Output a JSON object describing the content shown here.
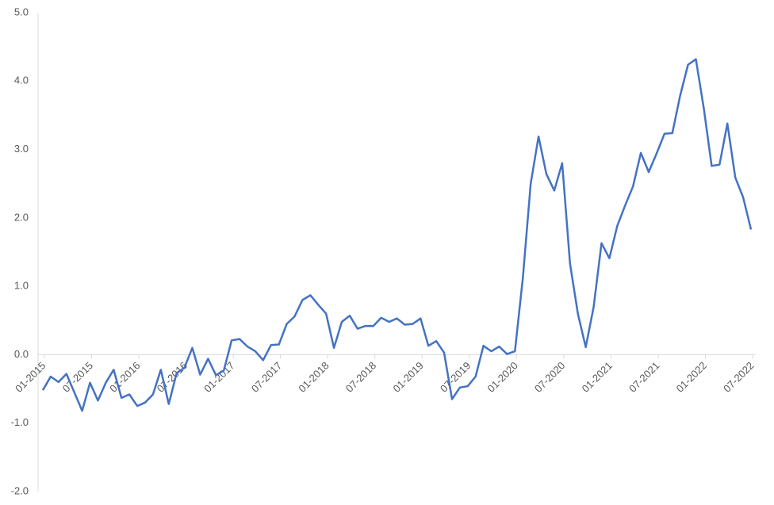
{
  "chart_data": {
    "type": "line",
    "categories": [
      "01-2015",
      null,
      null,
      null,
      null,
      null,
      "07-2015",
      null,
      null,
      null,
      null,
      null,
      "01-2016",
      null,
      null,
      null,
      null,
      null,
      "07-2016",
      null,
      null,
      null,
      null,
      null,
      "01-2017",
      null,
      null,
      null,
      null,
      null,
      "07-2017",
      null,
      null,
      null,
      null,
      null,
      "01-2018",
      null,
      null,
      null,
      null,
      null,
      "07-2018",
      null,
      null,
      null,
      null,
      null,
      "01-2019",
      null,
      null,
      null,
      null,
      null,
      "07-2019",
      null,
      null,
      null,
      null,
      null,
      "01-2020",
      null,
      null,
      null,
      null,
      null,
      "07-2020",
      null,
      null,
      null,
      null,
      null,
      "01-2021",
      null,
      null,
      null,
      null,
      null,
      "07-2021",
      null,
      null,
      null,
      null,
      null,
      "01-2022",
      null,
      null,
      null,
      null,
      null,
      "07-2022"
    ],
    "series": [
      {
        "color": "#4472c4",
        "values": [
          -0.52,
          -0.32,
          -0.4,
          -0.28,
          -0.55,
          -0.82,
          -0.41,
          -0.67,
          -0.41,
          -0.22,
          -0.63,
          -0.58,
          -0.75,
          -0.7,
          -0.58,
          -0.22,
          -0.72,
          -0.27,
          -0.19,
          0.1,
          -0.29,
          -0.06,
          -0.3,
          -0.23,
          0.21,
          0.23,
          0.12,
          0.05,
          -0.08,
          0.14,
          0.15,
          0.45,
          0.56,
          0.8,
          0.87,
          0.73,
          0.6,
          0.1,
          0.48,
          0.57,
          0.38,
          0.42,
          0.42,
          0.54,
          0.48,
          0.53,
          0.44,
          0.45,
          0.53,
          0.13,
          0.2,
          0.03,
          -0.65,
          -0.48,
          -0.46,
          -0.32,
          0.13,
          0.05,
          0.12,
          0.01,
          0.05,
          1.12,
          2.5,
          3.19,
          2.64,
          2.4,
          2.8,
          1.33,
          0.6,
          0.11,
          0.7,
          1.63,
          1.41,
          1.88,
          2.18,
          2.46,
          2.95,
          2.67,
          2.94,
          3.23,
          3.24,
          3.79,
          4.24,
          4.32,
          3.6,
          2.76,
          2.78,
          3.38,
          2.59,
          2.3,
          1.83
        ]
      }
    ],
    "ylim": [
      -2,
      5
    ],
    "yticks": [
      {
        "value": -2,
        "label": "-2.0"
      },
      {
        "value": -1,
        "label": "-1.0"
      },
      {
        "value": 0,
        "label": "0.0"
      },
      {
        "value": 1,
        "label": "1.0"
      },
      {
        "value": 2,
        "label": "2.0"
      },
      {
        "value": 3,
        "label": "3.0"
      },
      {
        "value": 4,
        "label": "4.0"
      },
      {
        "value": 5,
        "label": "5.0"
      }
    ],
    "grid": false
  }
}
